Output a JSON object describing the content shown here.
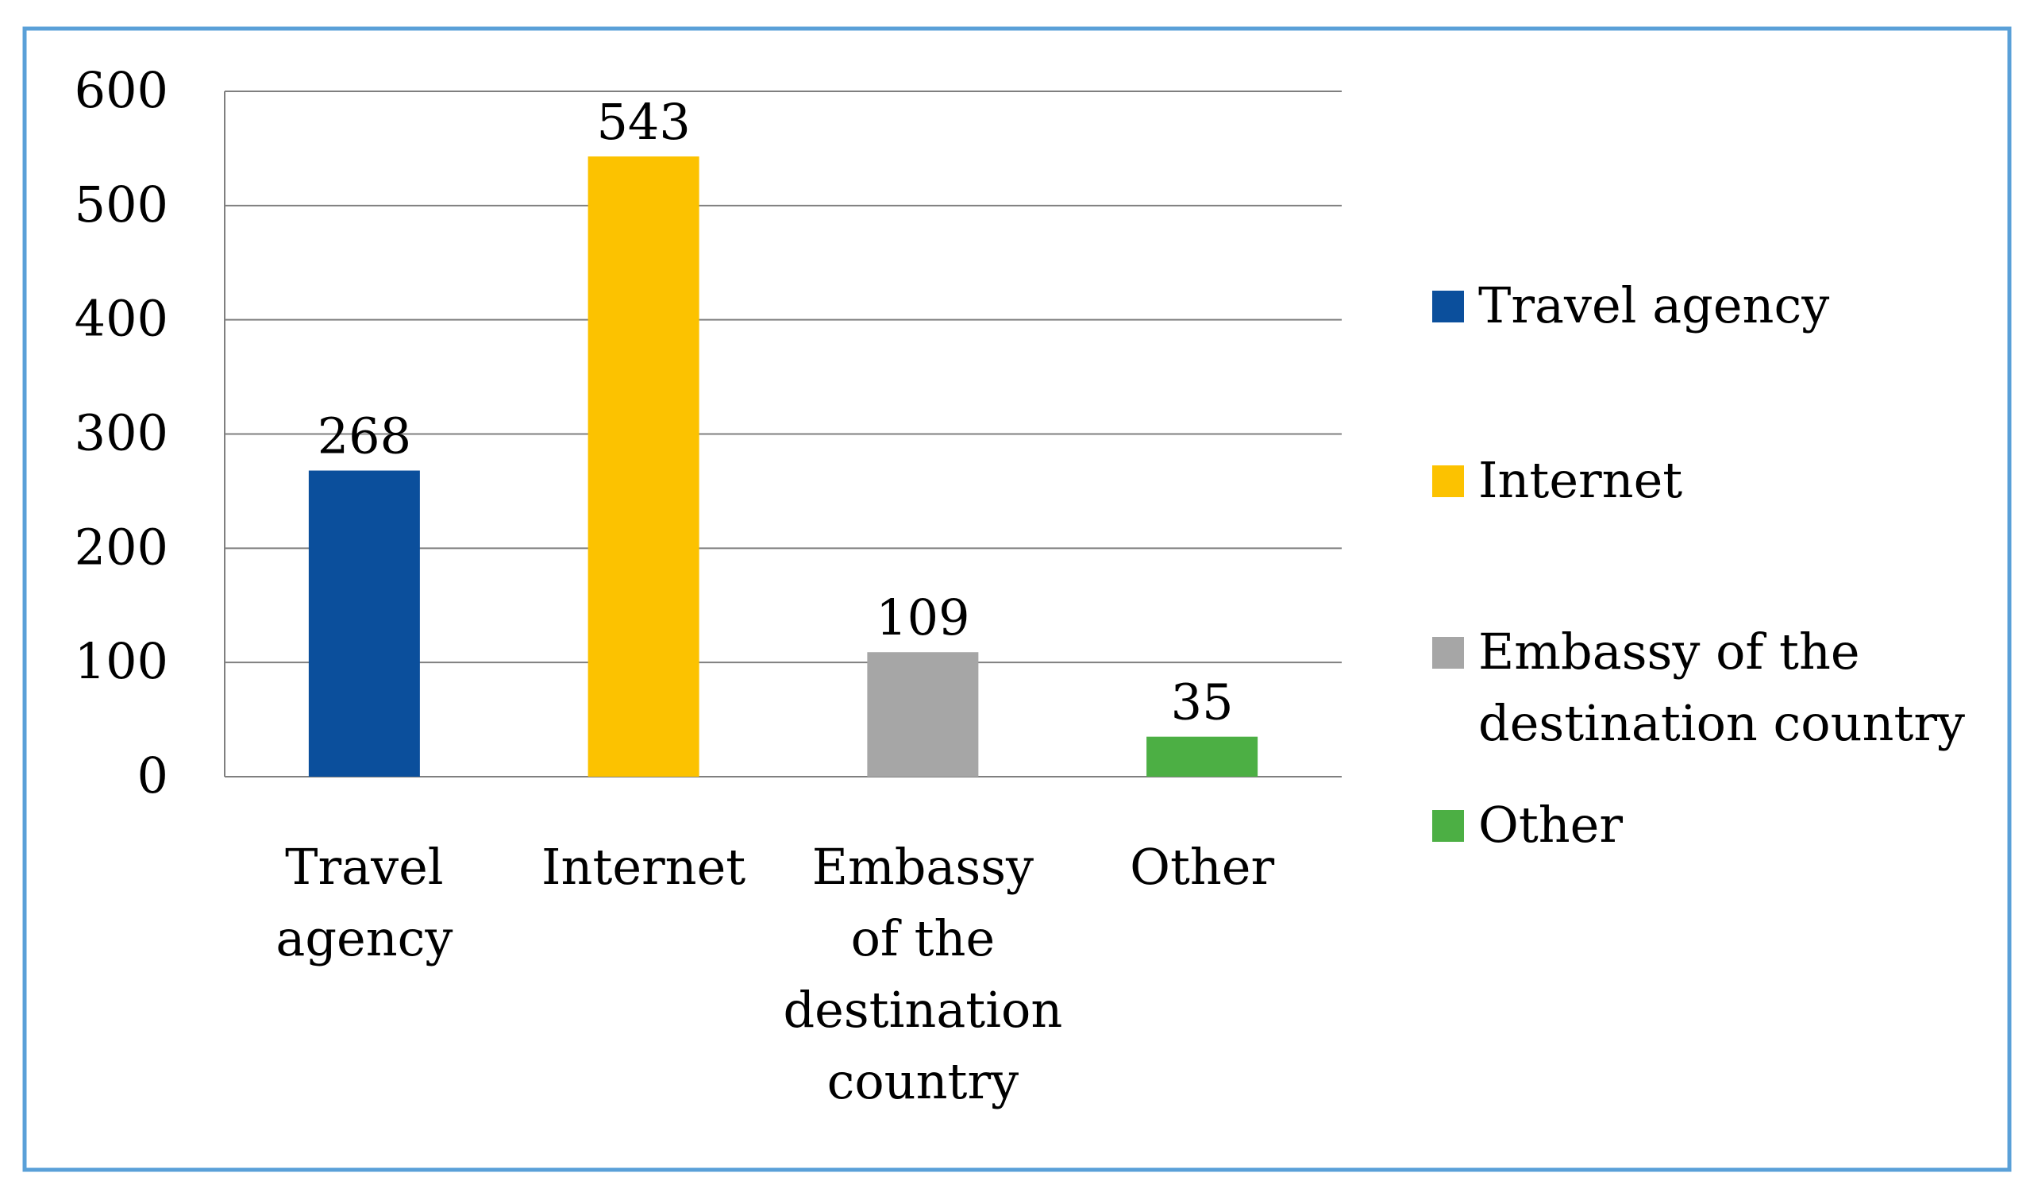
{
  "chart_data": {
    "type": "bar",
    "categories": [
      [
        "Travel",
        "agency"
      ],
      [
        "Internet"
      ],
      [
        "Embassy",
        "of the",
        "destination",
        "country"
      ],
      [
        "Other"
      ]
    ],
    "values": [
      268,
      543,
      109,
      35
    ],
    "data_labels": [
      "268",
      "543",
      "109",
      "35"
    ],
    "colors": [
      "#0b4f9c",
      "#fcc200",
      "#a6a6a6",
      "#4caf44"
    ],
    "ylim": [
      0,
      600
    ],
    "yticks": [
      0,
      100,
      200,
      300,
      400,
      500,
      600
    ],
    "ytick_labels": [
      "0",
      "100",
      "200",
      "300",
      "400",
      "500",
      "600"
    ],
    "grid": true,
    "legend_position": "right",
    "legend": [
      {
        "lines": [
          "Travel agency"
        ],
        "color": "#0b4f9c"
      },
      {
        "lines": [
          "Internet"
        ],
        "color": "#fcc200"
      },
      {
        "lines": [
          "Embassy of the",
          "destination country"
        ],
        "color": "#a6a6a6"
      },
      {
        "lines": [
          "Other"
        ],
        "color": "#4caf44"
      }
    ],
    "frame_color": "#5aa0d8",
    "grid_color": "#7f7f7f"
  }
}
